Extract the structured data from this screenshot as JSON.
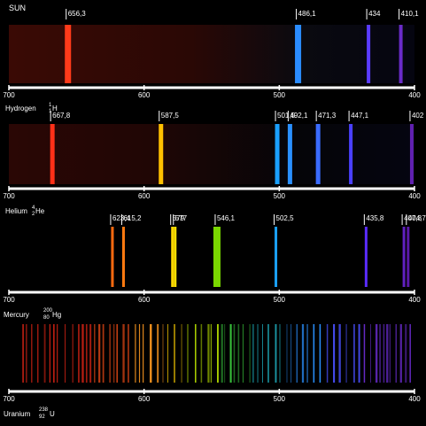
{
  "panels": [
    {
      "label": "SUN",
      "lines": [
        {
          "nm": 656.3,
          "text": "656,3",
          "color": "#ff3a1a"
        },
        {
          "nm": 486.1,
          "text": "486,1",
          "color": "#2a8cff"
        },
        {
          "nm": 434,
          "text": "434",
          "color": "#5a3cff"
        },
        {
          "nm": 410.1,
          "text": "410,1",
          "color": "#6a2cc8"
        }
      ]
    },
    {
      "label": "Hydrogen",
      "isotope": {
        "mass": "1",
        "z": "1",
        "symbol": "H"
      },
      "lines": [
        {
          "nm": 667.8,
          "text": "667,8",
          "color": "#ff3018"
        },
        {
          "nm": 587.5,
          "text": "587,5",
          "color": "#ffc000"
        },
        {
          "nm": 501.5,
          "text": "501,5",
          "color": "#1aa0ff"
        },
        {
          "nm": 492.1,
          "text": "492,1",
          "color": "#2a90ff"
        },
        {
          "nm": 471.3,
          "text": "471,3",
          "color": "#3a6cff"
        },
        {
          "nm": 447.1,
          "text": "447,1",
          "color": "#4a40ff"
        },
        {
          "nm": 402,
          "text": "402",
          "color": "#6020b0"
        }
      ]
    },
    {
      "label": "Helium",
      "isotope": {
        "mass": "4",
        "z": "2",
        "symbol": "He"
      },
      "lines": [
        {
          "nm": 623.4,
          "text": "623,4",
          "color": "#ff6a10"
        },
        {
          "nm": 615.2,
          "text": "615,2",
          "color": "#ff7a10"
        },
        {
          "nm": 579,
          "text": "579",
          "color": "#ffd800"
        },
        {
          "nm": 577,
          "text": "577",
          "color": "#ffe000"
        },
        {
          "nm": 546.1,
          "text": "546,1",
          "color": "#7ad800"
        },
        {
          "nm": 502.5,
          "text": "502,5",
          "color": "#1aa0ff"
        },
        {
          "nm": 435.8,
          "text": "435,8",
          "color": "#5a2cff"
        },
        {
          "nm": 407.8,
          "text": "407,8",
          "color": "#6020c0"
        },
        {
          "nm": 404.7,
          "text": "404,7",
          "color": "#5a18a8"
        }
      ]
    },
    {
      "label": "Mercury",
      "isotope": {
        "mass": "200",
        "z": "80",
        "symbol": "Hg"
      },
      "lines": []
    }
  ],
  "bottom_label": "Uranium",
  "bottom_isotope": {
    "mass": "238",
    "z": "92",
    "symbol": "U"
  },
  "axis": {
    "ticks": [
      700,
      600,
      500,
      400
    ],
    "min_nm": 400,
    "max_nm": 700
  }
}
